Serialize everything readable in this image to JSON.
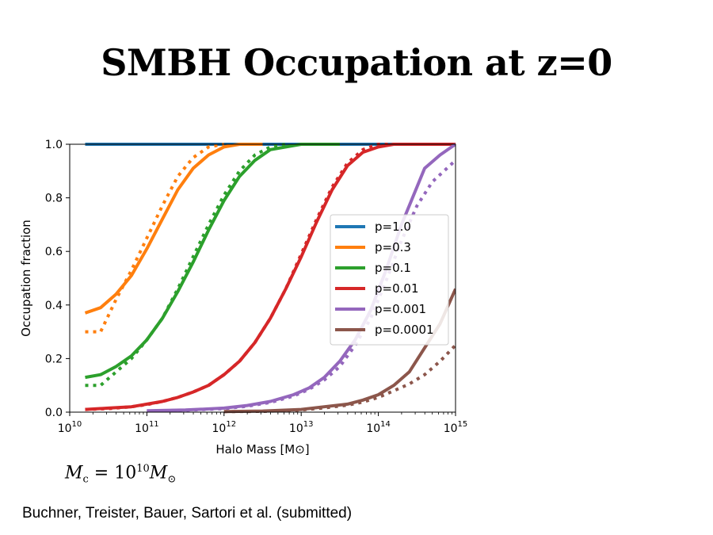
{
  "slide": {
    "title": "SMBH Occupation at z=0",
    "formula": {
      "lhs_symbol": "M",
      "lhs_sub": "c",
      "equals": " = ",
      "coef": "10",
      "exp": "10",
      "rhs_symbol": "M",
      "rhs_sub": "⊙"
    },
    "citation": "Buchner, Treister, Bauer, Sartori et al. (submitted)"
  },
  "chart_data": {
    "type": "line",
    "title": "",
    "xlabel": "Halo Mass [M⊙]",
    "ylabel": "Occupation fraction",
    "xscale": "log",
    "xlim": [
      10000000000.0,
      1000000000000000.0
    ],
    "ylim": [
      0,
      1.0
    ],
    "x_ticks": [
      {
        "base": "10",
        "exp": "10"
      },
      {
        "base": "10",
        "exp": "11"
      },
      {
        "base": "10",
        "exp": "12"
      },
      {
        "base": "10",
        "exp": "13"
      },
      {
        "base": "10",
        "exp": "14"
      },
      {
        "base": "10",
        "exp": "15"
      }
    ],
    "y_ticks": [
      "0.0",
      "0.2",
      "0.4",
      "0.6",
      "0.8",
      "1.0"
    ],
    "legend_position": "center-right",
    "line_styles": [
      "solid",
      "dotted"
    ],
    "series": [
      {
        "name": "p=1.0",
        "color": "#1f77b4",
        "solid": {
          "x": [
            10.2,
            15.0
          ],
          "y": [
            1.0,
            1.0
          ]
        },
        "dotted": {
          "x": [
            10.2,
            15.0
          ],
          "y": [
            1.0,
            1.0
          ]
        }
      },
      {
        "name": "p=0.3",
        "color": "#ff7f0e",
        "solid": {
          "x": [
            10.2,
            10.4,
            10.6,
            10.8,
            11.0,
            11.2,
            11.4,
            11.6,
            11.8,
            12.0,
            12.2,
            12.5
          ],
          "y": [
            0.37,
            0.39,
            0.44,
            0.51,
            0.61,
            0.72,
            0.83,
            0.91,
            0.96,
            0.99,
            1.0,
            1.0
          ]
        },
        "dotted": {
          "x": [
            10.2,
            10.4,
            10.6,
            10.8,
            11.0,
            11.2,
            11.4,
            11.6,
            11.8,
            12.0
          ],
          "y": [
            0.3,
            0.3,
            0.42,
            0.53,
            0.65,
            0.77,
            0.88,
            0.95,
            0.99,
            1.0
          ]
        }
      },
      {
        "name": "p=0.1",
        "color": "#2ca02c",
        "solid": {
          "x": [
            10.2,
            10.4,
            10.6,
            10.8,
            11.0,
            11.2,
            11.4,
            11.6,
            11.8,
            12.0,
            12.2,
            12.4,
            12.6,
            12.8,
            13.0,
            13.5
          ],
          "y": [
            0.13,
            0.14,
            0.17,
            0.21,
            0.27,
            0.35,
            0.45,
            0.56,
            0.68,
            0.79,
            0.88,
            0.94,
            0.98,
            0.99,
            1.0,
            1.0
          ]
        },
        "dotted": {
          "x": [
            10.2,
            10.4,
            10.6,
            10.8,
            11.0,
            11.2,
            11.4,
            11.6,
            11.8,
            12.0,
            12.2,
            12.4,
            12.6,
            12.8
          ],
          "y": [
            0.1,
            0.1,
            0.15,
            0.2,
            0.27,
            0.35,
            0.46,
            0.58,
            0.7,
            0.81,
            0.9,
            0.96,
            0.99,
            1.0
          ]
        }
      },
      {
        "name": "p=0.01",
        "color": "#d62728",
        "solid": {
          "x": [
            10.2,
            10.5,
            10.8,
            11.0,
            11.2,
            11.4,
            11.6,
            11.8,
            12.0,
            12.2,
            12.4,
            12.6,
            12.8,
            13.0,
            13.2,
            13.4,
            13.6,
            13.8,
            14.0,
            14.2,
            14.5,
            15.0
          ],
          "y": [
            0.01,
            0.015,
            0.02,
            0.03,
            0.04,
            0.055,
            0.075,
            0.1,
            0.14,
            0.19,
            0.26,
            0.35,
            0.46,
            0.58,
            0.71,
            0.83,
            0.92,
            0.97,
            0.99,
            1.0,
            1.0,
            1.0
          ]
        },
        "dotted": {
          "x": [
            10.2,
            10.5,
            10.8,
            11.0,
            11.2,
            11.4,
            11.6,
            11.8,
            12.0,
            12.2,
            12.4,
            12.6,
            12.8,
            13.0,
            13.2,
            13.4,
            13.6,
            13.8,
            14.0,
            14.2
          ],
          "y": [
            0.01,
            0.013,
            0.02,
            0.028,
            0.04,
            0.055,
            0.075,
            0.1,
            0.14,
            0.19,
            0.26,
            0.35,
            0.46,
            0.59,
            0.72,
            0.84,
            0.93,
            0.98,
            1.0,
            1.0
          ]
        }
      },
      {
        "name": "p=0.001",
        "color": "#9467bd",
        "solid": {
          "x": [
            11.0,
            11.5,
            12.0,
            12.3,
            12.6,
            12.9,
            13.1,
            13.3,
            13.5,
            13.7,
            13.9,
            14.1,
            14.3,
            14.6,
            14.8,
            15.0
          ],
          "y": [
            0.005,
            0.008,
            0.015,
            0.025,
            0.04,
            0.065,
            0.09,
            0.13,
            0.19,
            0.27,
            0.38,
            0.53,
            0.7,
            0.91,
            0.96,
            1.0
          ]
        },
        "dotted": {
          "x": [
            11.0,
            11.5,
            12.0,
            12.3,
            12.6,
            12.9,
            13.1,
            13.3,
            13.5,
            13.7,
            13.9,
            14.1,
            14.3,
            14.5,
            14.7,
            15.0
          ],
          "y": [
            0.004,
            0.007,
            0.013,
            0.022,
            0.036,
            0.06,
            0.085,
            0.12,
            0.17,
            0.25,
            0.35,
            0.49,
            0.64,
            0.77,
            0.86,
            0.94
          ]
        }
      },
      {
        "name": "p=0.0001",
        "color": "#8c564b",
        "solid": {
          "x": [
            12.0,
            12.5,
            13.0,
            13.3,
            13.6,
            13.8,
            14.0,
            14.2,
            14.4,
            14.6,
            14.8,
            15.0
          ],
          "y": [
            0.002,
            0.004,
            0.01,
            0.02,
            0.03,
            0.045,
            0.065,
            0.1,
            0.15,
            0.24,
            0.33,
            0.46
          ]
        },
        "dotted": {
          "x": [
            12.0,
            12.5,
            13.0,
            13.3,
            13.6,
            13.8,
            14.0,
            14.2,
            14.4,
            14.6,
            14.8,
            15.0
          ],
          "y": [
            0.002,
            0.003,
            0.008,
            0.016,
            0.026,
            0.038,
            0.055,
            0.08,
            0.105,
            0.14,
            0.19,
            0.25
          ]
        }
      }
    ]
  }
}
